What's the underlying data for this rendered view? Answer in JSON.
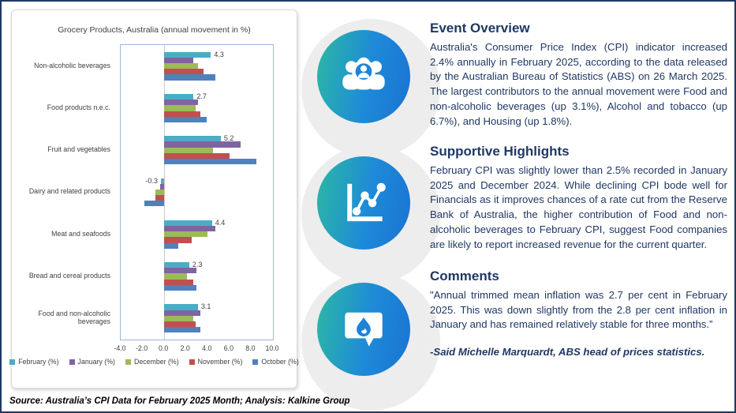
{
  "chart_data": {
    "type": "bar",
    "orientation": "horizontal",
    "title": "Grocery Products, Australia (annual movement in %)",
    "categories": [
      "Non-alcoholic beverages",
      "Food products n.e.c.",
      "Fruit and vegetables",
      "Dairy and related products",
      "Meat and seafoods",
      "Bread and cereal products",
      "Food and non-alcoholic beverages"
    ],
    "series": [
      {
        "name": "February (%)",
        "color": "#4BACC6",
        "values": [
          4.3,
          2.7,
          5.2,
          -0.3,
          4.4,
          2.3,
          3.1
        ]
      },
      {
        "name": "January (%)",
        "color": "#8064A2",
        "values": [
          2.7,
          3.1,
          7.0,
          -0.4,
          4.7,
          3.0,
          3.3
        ]
      },
      {
        "name": "December (%)",
        "color": "#9BBB59",
        "values": [
          3.1,
          2.9,
          4.5,
          -0.8,
          4.0,
          2.1,
          2.7
        ]
      },
      {
        "name": "November (%)",
        "color": "#C0504D",
        "values": [
          3.6,
          3.3,
          6.0,
          -0.8,
          2.5,
          2.7,
          2.9
        ]
      },
      {
        "name": "October (%)",
        "color": "#4F81BD",
        "values": [
          4.7,
          3.9,
          8.5,
          -1.8,
          1.3,
          3.0,
          3.3
        ]
      }
    ],
    "data_labels": {
      "series": "February (%)",
      "values": [
        "4.3",
        "2.7",
        "5.2",
        "-0.3",
        "4.4",
        "2.3",
        "3.1"
      ]
    },
    "xlim": [
      -4,
      10
    ],
    "x_ticks": [
      "-4.0",
      "-2.0",
      "0.0",
      "2.0",
      "4.0",
      "6.0",
      "8.0",
      "10.0"
    ],
    "legend_position": "bottom",
    "grid": false
  },
  "sections": [
    {
      "heading": "Event Overview",
      "icon": "people-search-icon",
      "body": "Australia's Consumer Price Index (CPI) indicator increased 2.4% annually in February 2025, according to the data released by the Australian Bureau of Statistics (ABS) on 26 March 2025. The largest contributors to the annual movement were Food and non-alcoholic beverages (up 3.1%), Alcohol and tobacco (up 6.7%), and Housing (up 1.8%)."
    },
    {
      "heading": "Supportive Highlights",
      "icon": "line-chart-icon",
      "body": "February CPI was slightly lower than 2.5% recorded in January 2025 and December 2024. While declining CPI bode well for Financials as it improves chances of a rate cut from the Reserve Bank of Australia, the higher contribution of Food and non-alcoholic beverages to February CPI, suggest Food companies are likely to report increased revenue for the current quarter."
    },
    {
      "heading": "Comments",
      "icon": "comment-flame-icon",
      "body": "\"Annual trimmed mean inflation was 2.7 per cent in February 2025. This was down slightly from the 2.8 per cent inflation in January and has remained relatively stable for three months.”",
      "attribution": "-Said Michelle Marquardt, ABS head of prices statistics."
    }
  ],
  "source_note": "Source: Australia’s CPI Data for February 2025 Month; Analysis: Kalkine Group",
  "colors": {
    "frame_border": "#1f3864",
    "text_navy": "#1f3864",
    "icon_gradient_start": "#2cb9a3",
    "icon_gradient_end": "#1a73d2",
    "plot_border": "#9db6dd",
    "deco_gray": "#ededed"
  }
}
